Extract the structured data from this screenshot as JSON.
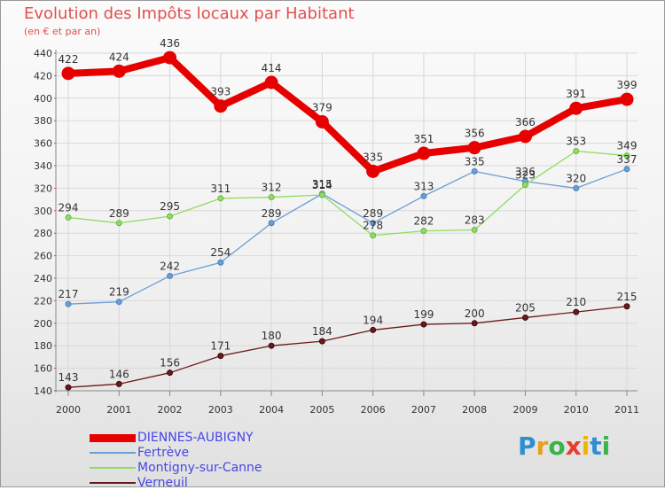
{
  "title": "Evolution des Impôts locaux par Habitant",
  "subtitle": "(en € et par an)",
  "logo": {
    "text": "Proxiti",
    "letters": [
      "P",
      "r",
      "o",
      "x",
      "i",
      "t",
      "i"
    ],
    "colors": [
      "#2e8fd0",
      "#e6a01b",
      "#38b449",
      "#e83e2f",
      "#f0b400",
      "#2e8fd0",
      "#38b449"
    ]
  },
  "chart_data": {
    "type": "line",
    "x": [
      "2000",
      "2001",
      "2002",
      "2003",
      "2004",
      "2005",
      "2006",
      "2007",
      "2008",
      "2009",
      "2010",
      "2011"
    ],
    "ylim": [
      140,
      440
    ],
    "yticks": [
      140,
      160,
      180,
      200,
      220,
      240,
      260,
      280,
      300,
      320,
      340,
      360,
      380,
      400,
      420,
      440
    ],
    "grid": true,
    "legend_position": "bottom-left",
    "series": [
      {
        "name": "DIENNES-AUBIGNY",
        "color": "#e60000",
        "width": 8,
        "marker": 7,
        "values": [
          422,
          424,
          436,
          393,
          414,
          379,
          335,
          351,
          356,
          366,
          391,
          399
        ]
      },
      {
        "name": "Fertrève",
        "color": "#6a9fd4",
        "width": 1.3,
        "marker": 3,
        "values": [
          217,
          219,
          242,
          254,
          289,
          315,
          289,
          313,
          335,
          326,
          320,
          337
        ]
      },
      {
        "name": "Montigny-sur-Canne",
        "color": "#90dc60",
        "width": 1.3,
        "marker": 3,
        "values": [
          294,
          289,
          295,
          311,
          312,
          314,
          278,
          282,
          283,
          323,
          353,
          349
        ]
      },
      {
        "name": "Verneuil",
        "color": "#6b1a1a",
        "width": 1.3,
        "marker": 3,
        "values": [
          143,
          146,
          156,
          171,
          180,
          184,
          194,
          199,
          200,
          205,
          210,
          215
        ]
      }
    ]
  }
}
